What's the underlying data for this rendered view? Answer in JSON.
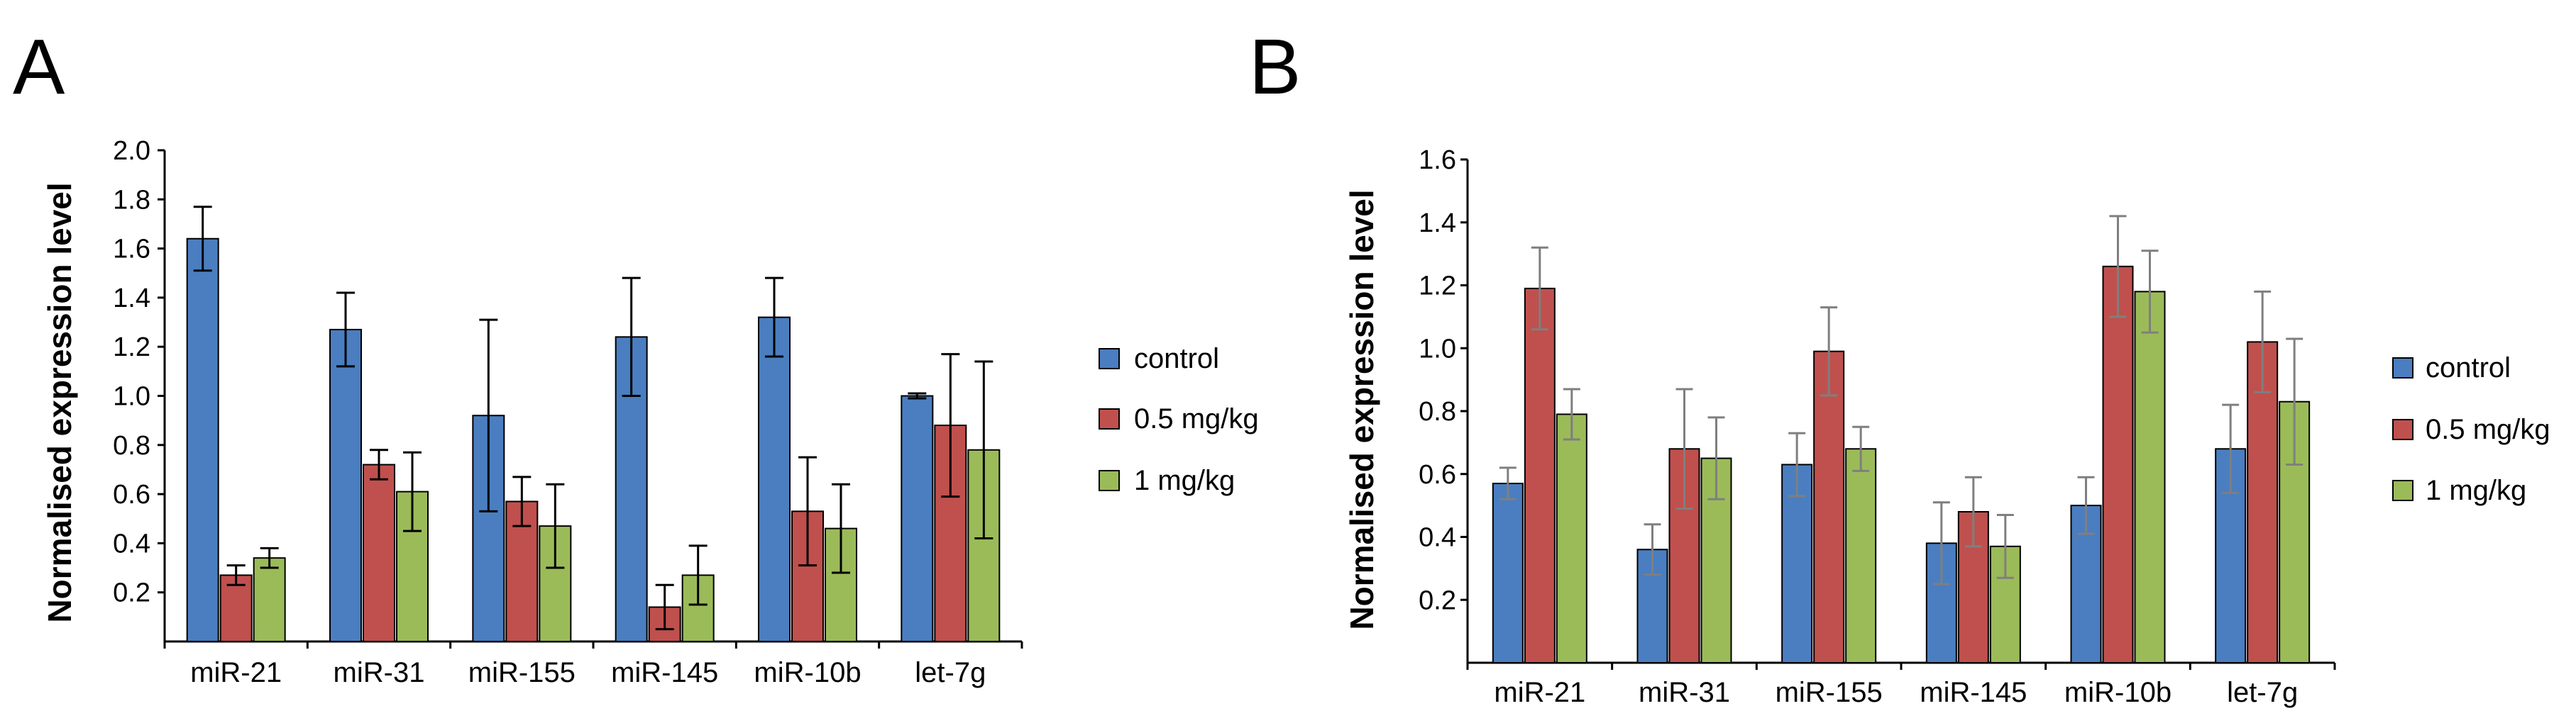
{
  "colors": {
    "control": "#4a7ec0",
    "dose_low": "#c0504d",
    "dose_high": "#9bbb59",
    "axis": "#000000",
    "error_a": "#000000",
    "error_b": "#7f7f7f"
  },
  "chart_data": [
    {
      "panel_label": "A",
      "type": "bar",
      "title": "",
      "xlabel": "",
      "ylabel": "Normalised expression level",
      "ylim": [
        0.0,
        2.0
      ],
      "yticks": [
        "0.2",
        "0.4",
        "0.6",
        "0.8",
        "1.0",
        "1.2",
        "1.4",
        "1.6",
        "1.8",
        "2.0"
      ],
      "ytick_values": [
        0.2,
        0.4,
        0.6,
        0.8,
        1.0,
        1.2,
        1.4,
        1.6,
        1.8,
        2.0
      ],
      "legend_position": "right",
      "categories": [
        "miR-21",
        "miR-31",
        "miR-155",
        "miR-145",
        "miR-10b",
        "let-7g"
      ],
      "series": [
        {
          "name": "control",
          "color_key": "control",
          "values": [
            1.64,
            1.27,
            0.92,
            1.24,
            1.32,
            1.0
          ],
          "errors": [
            0.13,
            0.15,
            0.39,
            0.24,
            0.16,
            0.01
          ]
        },
        {
          "name": "0.5 mg/kg",
          "color_key": "dose_low",
          "values": [
            0.27,
            0.72,
            0.57,
            0.14,
            0.53,
            0.88
          ],
          "errors": [
            0.04,
            0.06,
            0.1,
            0.09,
            0.22,
            0.29
          ]
        },
        {
          "name": "1 mg/kg",
          "color_key": "dose_high",
          "values": [
            0.34,
            0.61,
            0.47,
            0.27,
            0.46,
            0.78
          ],
          "errors": [
            0.04,
            0.16,
            0.17,
            0.12,
            0.18,
            0.36
          ]
        }
      ]
    },
    {
      "panel_label": "B",
      "type": "bar",
      "title": "",
      "xlabel": "",
      "ylabel": "Normalised expression level",
      "ylim": [
        0.0,
        1.6
      ],
      "yticks": [
        "0.2",
        "0.4",
        "0.6",
        "0.8",
        "1.0",
        "1.2",
        "1.4",
        "1.6"
      ],
      "ytick_values": [
        0.2,
        0.4,
        0.6,
        0.8,
        1.0,
        1.2,
        1.4,
        1.6
      ],
      "legend_position": "right",
      "categories": [
        "miR-21",
        "miR-31",
        "miR-155",
        "miR-145",
        "miR-10b",
        "let-7g"
      ],
      "series": [
        {
          "name": "control",
          "color_key": "control",
          "values": [
            0.57,
            0.36,
            0.63,
            0.38,
            0.5,
            0.68
          ],
          "errors": [
            0.05,
            0.08,
            0.1,
            0.13,
            0.09,
            0.14
          ]
        },
        {
          "name": "0.5 mg/kg",
          "color_key": "dose_low",
          "values": [
            1.19,
            0.68,
            0.99,
            0.48,
            1.26,
            1.02
          ],
          "errors": [
            0.13,
            0.19,
            0.14,
            0.11,
            0.16,
            0.16
          ]
        },
        {
          "name": "1 mg/kg",
          "color_key": "dose_high",
          "values": [
            0.79,
            0.65,
            0.68,
            0.37,
            1.18,
            0.83
          ],
          "errors": [
            0.08,
            0.13,
            0.07,
            0.1,
            0.13,
            0.2
          ]
        }
      ]
    }
  ]
}
